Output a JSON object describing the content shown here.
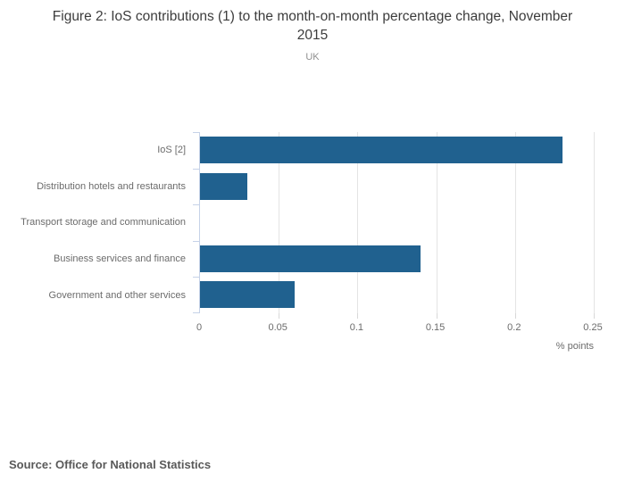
{
  "title": "Figure 2: IoS contributions (1) to the month-on-month percentage change, November 2015",
  "subtitle": "UK",
  "source": "Source: Office for National Statistics",
  "chart_data": {
    "type": "bar",
    "orientation": "horizontal",
    "title": "Figure 2: IoS contributions (1) to the month-on-month percentage change, November 2015",
    "subtitle": "UK",
    "categories": [
      "IoS [2]",
      "Distribution hotels and restaurants",
      "Transport storage and communication",
      "Business services and finance",
      "Government and other services"
    ],
    "values": [
      0.23,
      0.03,
      0,
      0.14,
      0.06
    ],
    "xlabel": "% points",
    "ylabel": "",
    "xlim": [
      0,
      0.25
    ],
    "xticks": [
      0,
      0.05,
      0.1,
      0.15,
      0.2,
      0.25
    ],
    "xtick_labels": [
      "0",
      "0.05",
      "0.1",
      "0.15",
      "0.2",
      "0.25"
    ],
    "grid": true,
    "legend": "none",
    "bar_color": "#20618f",
    "axis_color": "#c6d2e8",
    "grid_color": "#e4e4e4"
  }
}
